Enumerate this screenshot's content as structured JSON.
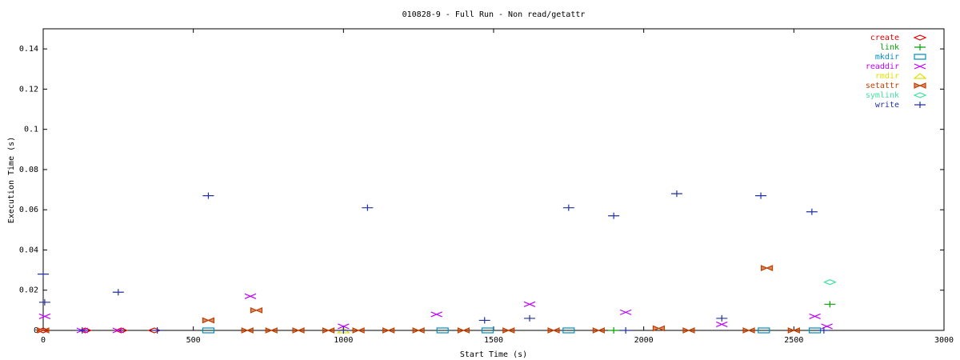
{
  "chart_data": {
    "type": "scatter",
    "title": "010828-9 - Full Run - Non read/getattr",
    "x_label": "Start Time (s)",
    "y_label": "Execution Time (s)",
    "xlim": [
      0,
      3000
    ],
    "xticks": [
      0,
      500,
      1000,
      1500,
      2000,
      2500,
      3000
    ],
    "ylim": [
      0,
      0.15
    ],
    "yticks": [
      0,
      0.02,
      0.04,
      0.06,
      0.08,
      0.1,
      0.12,
      0.14
    ],
    "legend": "top-right",
    "series": [
      {
        "name": "create",
        "color": "#e00000",
        "marker": "diamond",
        "x": [
          0,
          140,
          260,
          370
        ],
        "values": [
          0,
          0,
          0,
          0
        ]
      },
      {
        "name": "link",
        "color": "#00a000",
        "marker": "plus",
        "x": [
          1900,
          2620
        ],
        "values": [
          0,
          0.013
        ]
      },
      {
        "name": "mkdir",
        "color": "#0090c0",
        "marker": "square",
        "x": [
          550,
          1330,
          1480,
          1750,
          2400,
          2570
        ],
        "values": [
          0,
          0,
          0,
          0,
          0,
          0
        ]
      },
      {
        "name": "readdir",
        "color": "#c000ff",
        "marker": "cross",
        "x": [
          5,
          130,
          250,
          690,
          1000,
          1310,
          1620,
          1940,
          2260,
          2570,
          2610
        ],
        "values": [
          0.007,
          0,
          0,
          0.017,
          0.002,
          0.008,
          0.013,
          0.009,
          0.003,
          0.007,
          0.002
        ]
      },
      {
        "name": "rmdir",
        "color": "#e0e000",
        "marker": "triangle",
        "x": [
          1000
        ],
        "values": [
          0
        ]
      },
      {
        "name": "setattr",
        "color": "#c04000",
        "marker": "bowtie",
        "x": [
          0,
          550,
          680,
          710,
          760,
          850,
          950,
          1050,
          1150,
          1250,
          1400,
          1550,
          1700,
          1850,
          2050,
          2150,
          2350,
          2410,
          2500
        ],
        "values": [
          0,
          0.005,
          0,
          0.01,
          0,
          0,
          0,
          0,
          0,
          0,
          0,
          0,
          0,
          0,
          0.001,
          0,
          0,
          0.031,
          0
        ]
      },
      {
        "name": "symlink",
        "color": "#40e0a0",
        "marker": "diamond",
        "x": [
          2620
        ],
        "values": [
          0.024
        ]
      },
      {
        "name": "write",
        "color": "#2030a0",
        "marker": "plus",
        "x": [
          0,
          5,
          130,
          250,
          380,
          550,
          1000,
          1080,
          1470,
          1620,
          1750,
          1900,
          1940,
          2110,
          2260,
          2390,
          2560,
          2600
        ],
        "values": [
          0.028,
          0.014,
          0,
          0.019,
          0,
          0.067,
          0,
          0.061,
          0.005,
          0.006,
          0.061,
          0.057,
          0,
          0.068,
          0.006,
          0.067,
          0.059,
          0
        ]
      }
    ]
  }
}
